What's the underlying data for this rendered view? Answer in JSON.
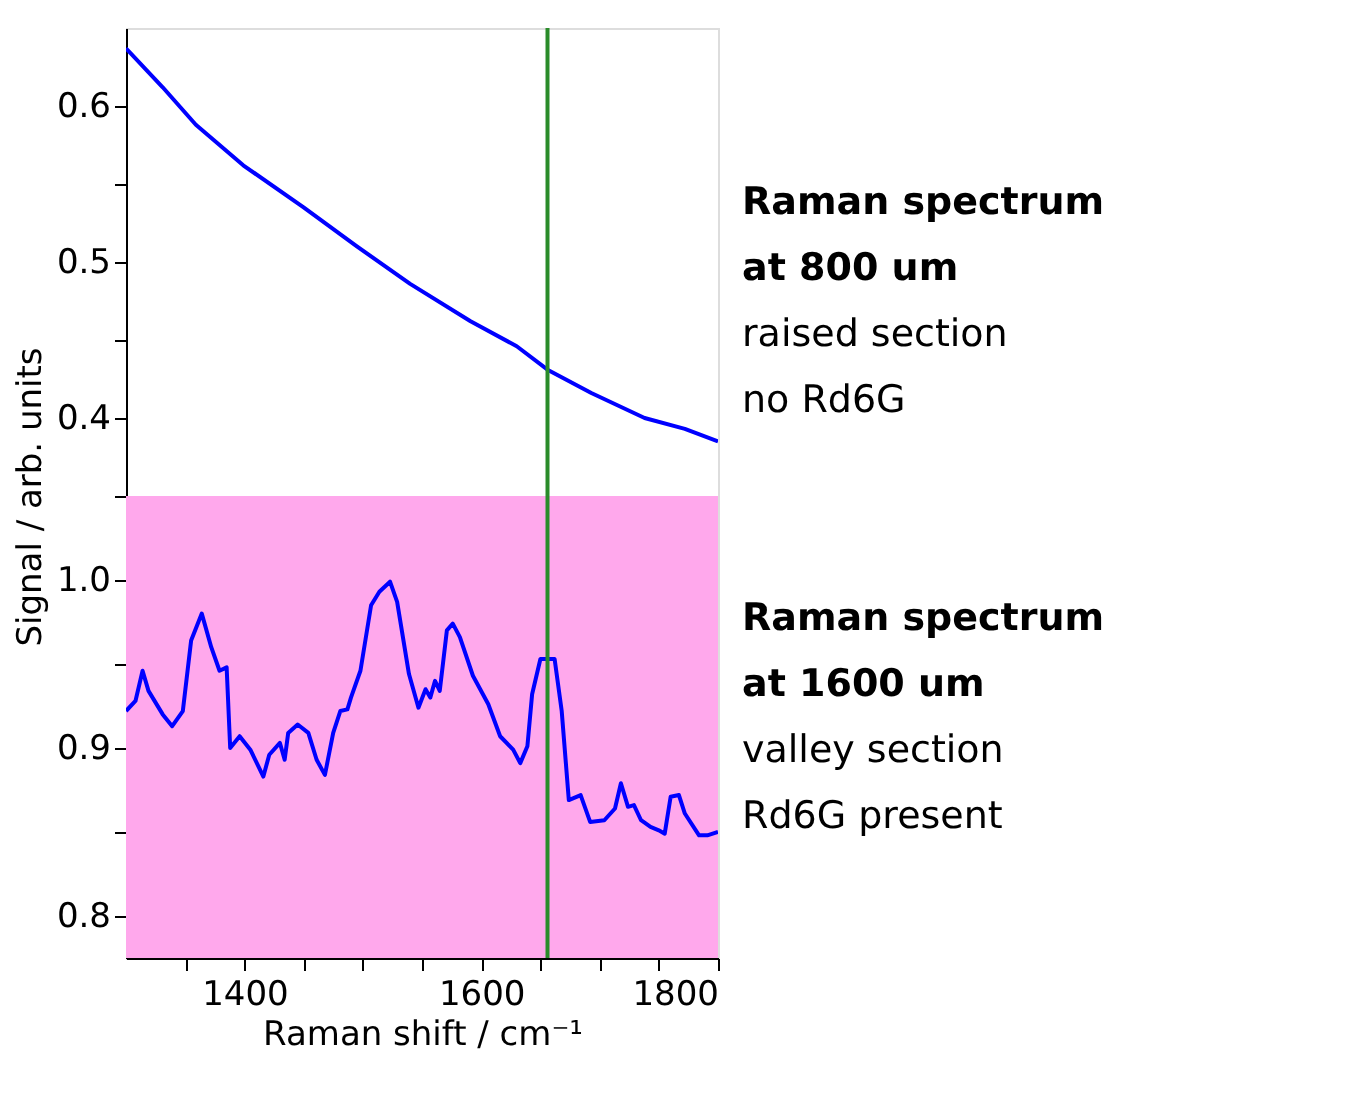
{
  "chart_data": [
    {
      "type": "line",
      "ylabel": "Signal / arb. units",
      "annotations": [
        "Raman spectrum\nat 800 um",
        "raised section",
        "no Rd6G"
      ],
      "x": [
        1300,
        1331,
        1359,
        1399,
        1450,
        1495,
        1540,
        1591,
        1630,
        1656,
        1693,
        1738,
        1772,
        1800
      ],
      "series": [
        {
          "color": "#0000ff",
          "values": [
            0.637,
            0.612,
            0.588,
            0.562,
            0.535,
            0.51,
            0.486,
            0.462,
            0.446,
            0.431,
            0.416,
            0.4,
            0.393,
            0.385
          ]
        }
      ],
      "xlim": [
        1300,
        1800
      ],
      "xticks": [
        {
          "value": 1350,
          "label": null
        },
        1400,
        {
          "value": 1450,
          "label": null
        },
        {
          "value": 1500,
          "label": null
        },
        {
          "value": 1550,
          "label": null
        },
        1600,
        {
          "value": 1650,
          "label": null
        },
        {
          "value": 1700,
          "label": null
        },
        {
          "value": 1750,
          "label": null
        },
        1800
      ],
      "ylim": [
        0.35,
        0.65
      ],
      "yticks": [
        {
          "value": 0.35,
          "label": null
        },
        0.4,
        {
          "value": 0.45,
          "label": null
        },
        0.5,
        {
          "value": 0.55,
          "label": null
        },
        0.6
      ],
      "ref_lines": [
        {
          "axis": "x",
          "value": 1656,
          "label": null,
          "color": "#2a8c2a"
        }
      ],
      "tick_labels": "y",
      "grid": false
    },
    {
      "type": "line",
      "xlabel": "Raman shift / cm⁻¹",
      "annotations": [
        "Raman spectrum\nat 1600 um",
        "valley section",
        "Rd6G present"
      ],
      "x": [
        1300,
        1308,
        1314,
        1319,
        1331,
        1339,
        1348,
        1355,
        1364,
        1372,
        1379,
        1385,
        1388,
        1396,
        1405,
        1416,
        1421,
        1430,
        1434,
        1437,
        1445,
        1454,
        1461,
        1468,
        1475,
        1481,
        1487,
        1490,
        1498,
        1507,
        1514,
        1523,
        1529,
        1539,
        1547,
        1553,
        1557,
        1561,
        1565,
        1571,
        1576,
        1582,
        1593,
        1606,
        1616,
        1627,
        1633,
        1639,
        1643,
        1650,
        1662,
        1668,
        1674,
        1684,
        1692,
        1704,
        1713,
        1718,
        1724,
        1729,
        1735,
        1743,
        1750,
        1755,
        1760,
        1767,
        1772,
        1784,
        1791,
        1800
      ],
      "series": [
        {
          "color": "#0000ff",
          "values": [
            0.922,
            0.928,
            0.946,
            0.934,
            0.92,
            0.913,
            0.922,
            0.964,
            0.98,
            0.96,
            0.946,
            0.948,
            0.9,
            0.907,
            0.899,
            0.883,
            0.896,
            0.903,
            0.893,
            0.909,
            0.914,
            0.909,
            0.893,
            0.884,
            0.909,
            0.922,
            0.923,
            0.93,
            0.946,
            0.985,
            0.993,
            0.999,
            0.987,
            0.944,
            0.924,
            0.935,
            0.93,
            0.94,
            0.934,
            0.97,
            0.974,
            0.966,
            0.943,
            0.926,
            0.907,
            0.899,
            0.891,
            0.901,
            0.932,
            0.953,
            0.953,
            0.922,
            0.869,
            0.872,
            0.856,
            0.857,
            0.864,
            0.879,
            0.865,
            0.866,
            0.857,
            0.853,
            0.851,
            0.849,
            0.871,
            0.872,
            0.861,
            0.848,
            0.848,
            0.85
          ]
        }
      ],
      "xlim": [
        1300,
        1800
      ],
      "xticks": [
        {
          "value": 1350,
          "label": null
        },
        1400,
        {
          "value": 1450,
          "label": null
        },
        {
          "value": 1500,
          "label": null
        },
        {
          "value": 1550,
          "label": null
        },
        1600,
        {
          "value": 1650,
          "label": null
        },
        {
          "value": 1700,
          "label": null
        },
        {
          "value": 1750,
          "label": null
        },
        1800
      ],
      "ylim": [
        0.775,
        1.05
      ],
      "yticks": [
        0.8,
        {
          "value": 0.85,
          "label": null
        },
        0.9,
        {
          "value": 0.95,
          "label": null
        },
        {
          "value": 1.0,
          "label": "1.0"
        }
      ],
      "bands": [
        {
          "axis": "x",
          "from": 1300,
          "to": 1800,
          "label": null,
          "color": "#ffa8ec"
        }
      ],
      "ref_lines": [
        {
          "axis": "x",
          "value": 1656,
          "label": null,
          "color": "#2a8c2a"
        }
      ],
      "grid": false
    }
  ]
}
